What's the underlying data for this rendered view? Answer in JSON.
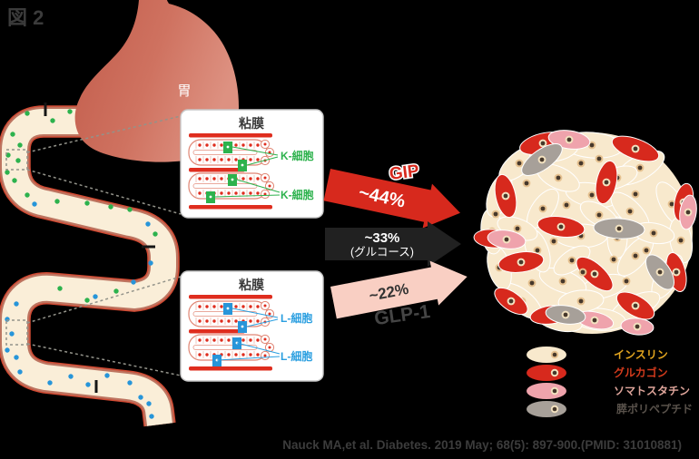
{
  "figure_label": "図 2",
  "stomach": {
    "label": "胃"
  },
  "mucosa_upper": {
    "title": "粘膜",
    "cell_labels": [
      "K-細胞",
      "K-細胞"
    ]
  },
  "mucosa_lower": {
    "title": "粘膜",
    "cell_labels": [
      "L-細胞",
      "L-細胞"
    ]
  },
  "arrows": {
    "gip": {
      "label": "GIP",
      "percent": "~44%",
      "color": "#d7291d"
    },
    "glucose": {
      "percent": "~33%",
      "sublabel": "(グルコース)",
      "color": "#212121"
    },
    "glp1": {
      "label": "GLP-1",
      "percent": "~22%",
      "color": "#f9cfc3"
    }
  },
  "legend": {
    "items": [
      {
        "label": "インスリン",
        "cell_color": "#f8e9cd",
        "text_color": "#e3a61f"
      },
      {
        "label": "グルカゴン",
        "cell_color": "#d7291d",
        "text_color": "#d23a1c"
      },
      {
        "label": "ソマトスタチン",
        "cell_color": "#efa3ac",
        "text_color": "#dda49a"
      },
      {
        "label": "膵ポリペプチド",
        "cell_color": "#a7a099",
        "text_color": "#59524b"
      }
    ]
  },
  "citation": "Nauck MA,et al. Diabetes. 2019 May; 68(5): 897-900.(PMID: 31010881)",
  "colors": {
    "background": "#000000",
    "k_cell_dot": "#2db24d",
    "l_cell_dot": "#2795d9",
    "k_label": "#2db24d",
    "l_label": "#2b9fe0",
    "mucosa_bar": "#df2d1e",
    "villus_outline": "#e08573",
    "islet_cream": "#f8e9cd",
    "islet_red": "#d7291d",
    "islet_pink": "#efa3ac",
    "islet_gray": "#a7a099",
    "nucleus_ring": "#e5c190",
    "nucleus_ring_light": "#f3e2c0",
    "nucleus_dot": "#46382b"
  },
  "intestine": {
    "k_cells": [
      [
        77,
        123
      ],
      [
        58,
        133
      ],
      [
        30,
        125
      ],
      [
        14,
        148
      ],
      [
        22,
        160
      ],
      [
        9,
        171
      ],
      [
        20,
        177
      ],
      [
        8,
        190
      ],
      [
        16,
        199
      ],
      [
        30,
        215
      ],
      [
        63,
        222
      ],
      [
        96,
        224
      ],
      [
        122,
        228
      ],
      [
        143,
        231
      ],
      [
        171,
        258
      ],
      [
        66,
        318
      ],
      [
        128,
        321
      ],
      [
        96,
        331
      ]
    ],
    "l_cells": [
      [
        38,
        225
      ],
      [
        163,
        247
      ],
      [
        166,
        290
      ],
      [
        147,
        311
      ],
      [
        105,
        327
      ],
      [
        18,
        335
      ],
      [
        8,
        352
      ],
      [
        13,
        368
      ],
      [
        8,
        386
      ],
      [
        18,
        394
      ],
      [
        22,
        410
      ],
      [
        55,
        422
      ],
      [
        78,
        415
      ],
      [
        97,
        424
      ],
      [
        118,
        414
      ],
      [
        143,
        422
      ],
      [
        155,
        438
      ],
      [
        164,
        445
      ],
      [
        167,
        459
      ]
    ]
  },
  "islet": {
    "cream": [
      [
        652,
        160,
        34,
        14,
        5
      ],
      [
        705,
        185,
        30,
        13,
        -30
      ],
      [
        740,
        225,
        27,
        12,
        60
      ],
      [
        750,
        265,
        25,
        12,
        80
      ],
      [
        735,
        305,
        27,
        12,
        -60
      ],
      [
        700,
        338,
        29,
        12,
        -25
      ],
      [
        660,
        352,
        29,
        12,
        5
      ],
      [
        615,
        352,
        27,
        12,
        15
      ],
      [
        575,
        332,
        27,
        12,
        40
      ],
      [
        550,
        295,
        25,
        12,
        75
      ],
      [
        542,
        255,
        25,
        12,
        85
      ],
      [
        550,
        215,
        25,
        12,
        -70
      ],
      [
        572,
        180,
        27,
        12,
        -40
      ],
      [
        610,
        166,
        27,
        12,
        -10
      ],
      [
        652,
        215,
        29,
        13,
        10
      ],
      [
        694,
        233,
        27,
        12,
        45
      ],
      [
        700,
        282,
        27,
        12,
        -50
      ],
      [
        665,
        316,
        27,
        12,
        -15
      ],
      [
        620,
        310,
        27,
        12,
        20
      ],
      [
        592,
        276,
        25,
        12,
        70
      ],
      [
        598,
        230,
        25,
        12,
        -55
      ],
      [
        640,
        260,
        29,
        13,
        0
      ],
      [
        680,
        262,
        23,
        11,
        90
      ],
      [
        630,
        287,
        23,
        11,
        -35
      ],
      [
        660,
        237,
        23,
        11,
        30
      ],
      [
        615,
        196,
        25,
        12,
        25
      ],
      [
        680,
        196,
        23,
        11,
        -20
      ],
      [
        720,
        257,
        23,
        11,
        10
      ],
      [
        640,
        332,
        25,
        12,
        -5
      ],
      [
        570,
        252,
        23,
        11,
        20
      ]
    ],
    "red": [
      [
        598,
        158,
        26,
        11,
        -14
      ],
      [
        700,
        164,
        27,
        11,
        20
      ],
      [
        668,
        201,
        11,
        24,
        12
      ],
      [
        557,
        216,
        11,
        24,
        -12
      ],
      [
        618,
        250,
        26,
        11,
        8
      ],
      [
        543,
        263,
        21,
        10,
        5
      ],
      [
        753,
        223,
        10,
        21,
        12
      ],
      [
        655,
        302,
        25,
        11,
        42
      ],
      [
        574,
        289,
        25,
        11,
        -8
      ],
      [
        563,
        332,
        21,
        10,
        35
      ],
      [
        607,
        347,
        23,
        10,
        -8
      ],
      [
        700,
        337,
        23,
        11,
        30
      ],
      [
        745,
        300,
        10,
        22,
        -14
      ]
    ],
    "pink": [
      [
        627,
        154,
        23,
        10,
        8
      ],
      [
        758,
        234,
        9,
        19,
        8
      ],
      [
        558,
        264,
        21,
        10,
        8
      ],
      [
        655,
        353,
        21,
        9,
        12
      ],
      [
        702,
        360,
        18,
        9,
        5
      ]
    ],
    "gray": [
      [
        597,
        176,
        26,
        11,
        -35
      ],
      [
        682,
        252,
        28,
        11,
        3
      ],
      [
        727,
        300,
        11,
        22,
        -35
      ],
      [
        623,
        347,
        22,
        10,
        8
      ]
    ],
    "extra_nuclei": [
      [
        640,
        180
      ],
      [
        700,
        214
      ],
      [
        624,
        226
      ],
      [
        580,
        202
      ],
      [
        546,
        236
      ],
      [
        610,
        266
      ],
      [
        586,
        312
      ],
      [
        642,
        300
      ],
      [
        676,
        286
      ],
      [
        712,
        276
      ],
      [
        690,
        310
      ],
      [
        660,
        175
      ]
    ]
  }
}
